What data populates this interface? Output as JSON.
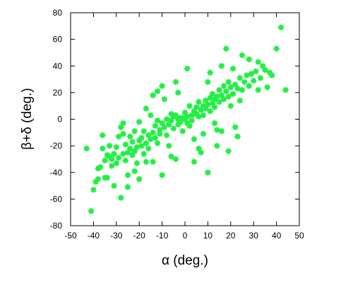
{
  "chart_data": {
    "type": "scatter",
    "title": "",
    "xlabel": "α (deg.)",
    "ylabel": "β+δ (deg.)",
    "xlim": [
      -50,
      50
    ],
    "ylim": [
      -80,
      80
    ],
    "xticks": [
      -50,
      -40,
      -30,
      -20,
      -10,
      0,
      10,
      20,
      30,
      40,
      50
    ],
    "yticks": [
      -80,
      -60,
      -40,
      -20,
      0,
      20,
      40,
      60,
      80
    ],
    "xtick_labels": [
      "-50",
      "-40",
      "-30",
      "-20",
      "-10",
      "0",
      "10",
      "20",
      "30",
      "40",
      "50"
    ],
    "ytick_labels": [
      "-80",
      "-60",
      "-40",
      "-20",
      "0",
      "20",
      "40",
      "60",
      "80"
    ],
    "grid": false,
    "legend": "none",
    "marker_color": "#22ee44",
    "series": [
      {
        "marker": "star",
        "points": [
          [
            -43,
            -22
          ],
          [
            -41,
            -69
          ],
          [
            -40,
            -53
          ],
          [
            -39,
            -47
          ],
          [
            -38,
            -37
          ],
          [
            -37,
            -36
          ],
          [
            -36,
            -12
          ],
          [
            -36,
            -22
          ],
          [
            -35,
            -31
          ],
          [
            -35,
            -44
          ],
          [
            -34,
            -27
          ],
          [
            -33,
            -28
          ],
          [
            -33,
            -20
          ],
          [
            -32,
            -35
          ],
          [
            -32,
            -30
          ],
          [
            -31,
            -26
          ],
          [
            -30,
            -33
          ],
          [
            -30,
            -21
          ],
          [
            -29,
            -29
          ],
          [
            -28,
            -59
          ],
          [
            -28,
            -6
          ],
          [
            -27,
            -11
          ],
          [
            -27,
            -26
          ],
          [
            -26,
            -31
          ],
          [
            -26,
            -19
          ],
          [
            -25,
            -25
          ],
          [
            -25,
            -42
          ],
          [
            -24,
            -22
          ],
          [
            -24,
            -13
          ],
          [
            -23,
            -27
          ],
          [
            -23,
            -17
          ],
          [
            -22,
            -24
          ],
          [
            -22,
            -9
          ],
          [
            -21,
            -21
          ],
          [
            -21,
            -33
          ],
          [
            -20,
            -16
          ],
          [
            -20,
            -2
          ],
          [
            -19,
            -20
          ],
          [
            -19,
            -14
          ],
          [
            -18,
            -26
          ],
          [
            -18,
            -9
          ],
          [
            -17,
            -18
          ],
          [
            -17,
            8
          ],
          [
            -16,
            -12
          ],
          [
            -16,
            -22
          ],
          [
            -15,
            -15
          ],
          [
            -15,
            3
          ],
          [
            -14,
            -10
          ],
          [
            -14,
            -32
          ],
          [
            -13,
            -14
          ],
          [
            -13,
            -5
          ],
          [
            -12,
            -18
          ],
          [
            -12,
            -1
          ],
          [
            -11,
            -8
          ],
          [
            -11,
            -11
          ],
          [
            -10,
            -3
          ],
          [
            -10,
            -42
          ],
          [
            -9,
            -6
          ],
          [
            -9,
            15
          ],
          [
            -8,
            -12
          ],
          [
            -8,
            0
          ],
          [
            -7,
            -4
          ],
          [
            -7,
            -20
          ],
          [
            -6,
            -1
          ],
          [
            -6,
            4
          ],
          [
            -5,
            -7
          ],
          [
            -5,
            2
          ],
          [
            -4,
            3
          ],
          [
            -4,
            -30
          ],
          [
            -3,
            0
          ],
          [
            -3,
            -4
          ],
          [
            -2,
            -2
          ],
          [
            -2,
            1
          ],
          [
            -1,
            1
          ],
          [
            -1,
            -9
          ],
          [
            0,
            0
          ],
          [
            0,
            5
          ],
          [
            1,
            2
          ],
          [
            1,
            -3
          ],
          [
            2,
            -5
          ],
          [
            2,
            10
          ],
          [
            3,
            3
          ],
          [
            3,
            -1
          ],
          [
            4,
            6
          ],
          [
            4,
            -15
          ],
          [
            5,
            4
          ],
          [
            5,
            9
          ],
          [
            6,
            2
          ],
          [
            6,
            13
          ],
          [
            7,
            7
          ],
          [
            7,
            -25
          ],
          [
            8,
            10
          ],
          [
            8,
            3
          ],
          [
            9,
            8
          ],
          [
            9,
            14
          ],
          [
            10,
            11
          ],
          [
            10,
            -40
          ],
          [
            11,
            6
          ],
          [
            11,
            16
          ],
          [
            12,
            12
          ],
          [
            12,
            19
          ],
          [
            13,
            9
          ],
          [
            13,
            15
          ],
          [
            14,
            17
          ],
          [
            14,
            -20
          ],
          [
            15,
            13
          ],
          [
            15,
            22
          ],
          [
            16,
            18
          ],
          [
            16,
            -9
          ],
          [
            17,
            15
          ],
          [
            17,
            25
          ],
          [
            18,
            21
          ],
          [
            18,
            53
          ],
          [
            19,
            17
          ],
          [
            19,
            28
          ],
          [
            20,
            24
          ],
          [
            20,
            10
          ],
          [
            21,
            19
          ],
          [
            22,
            26
          ],
          [
            22,
            -6
          ],
          [
            23,
            23
          ],
          [
            24,
            31
          ],
          [
            24,
            14
          ],
          [
            25,
            22
          ],
          [
            26,
            28
          ],
          [
            27,
            33
          ],
          [
            28,
            25
          ],
          [
            28,
            45
          ],
          [
            29,
            34
          ],
          [
            30,
            29
          ],
          [
            31,
            36
          ],
          [
            32,
            22
          ],
          [
            33,
            31
          ],
          [
            34,
            40
          ],
          [
            35,
            37
          ],
          [
            36,
            24
          ],
          [
            37,
            35
          ],
          [
            38,
            33
          ],
          [
            40,
            53
          ],
          [
            42,
            69
          ],
          [
            44,
            22
          ],
          [
            -12,
            21
          ],
          [
            -20,
            -45
          ],
          [
            8,
            -11
          ],
          [
            -25,
            -51
          ],
          [
            1,
            38
          ],
          [
            -4,
            28
          ],
          [
            23,
            -13
          ],
          [
            -17,
            -32
          ],
          [
            10,
            28
          ],
          [
            -29,
            -13
          ],
          [
            -22,
            -39
          ],
          [
            -34,
            -44
          ],
          [
            -6,
            -28
          ],
          [
            11,
            35
          ],
          [
            16,
            40
          ],
          [
            -14,
            18
          ],
          [
            4,
            -32
          ],
          [
            19,
            -24
          ],
          [
            14,
            -8
          ],
          [
            25,
            48
          ],
          [
            32,
            43
          ],
          [
            -10,
            25
          ],
          [
            -27,
            -3
          ],
          [
            6,
            -22
          ],
          [
            13,
            -3
          ],
          [
            -3,
            20
          ],
          [
            21,
            38
          ],
          [
            -31,
            -50
          ],
          [
            -38,
            -45
          ]
        ]
      }
    ]
  }
}
